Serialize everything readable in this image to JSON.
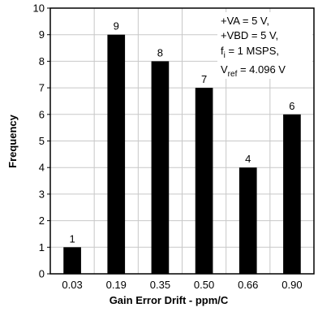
{
  "chart_data": {
    "type": "bar",
    "title": "",
    "xlabel": "Gain Error Drift - ppm/C",
    "ylabel": "Frequency",
    "categories": [
      "0.03",
      "0.19",
      "0.35",
      "0.50",
      "0.66",
      "0.90"
    ],
    "values": [
      1,
      9,
      8,
      7,
      4,
      6
    ],
    "ylim": [
      0,
      10
    ],
    "yticks": [
      0,
      1,
      2,
      3,
      4,
      5,
      6,
      7,
      8,
      9,
      10
    ],
    "grid": true,
    "bar_color": "#000000",
    "annotation": {
      "lines": [
        {
          "text": "+VA = 5 V,"
        },
        {
          "text": "+VBD = 5 V,"
        },
        {
          "main": "f",
          "sub": "i",
          "rest": " = 1 MSPS,"
        },
        {
          "main": "V",
          "sub": "ref",
          "rest": " = 4.096 V"
        }
      ]
    }
  }
}
